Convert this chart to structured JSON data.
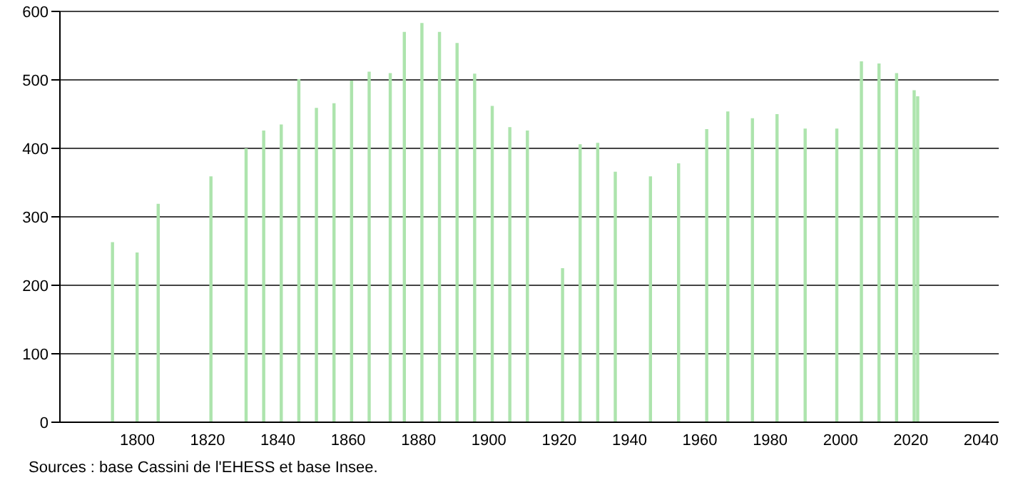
{
  "chart_data": {
    "type": "bar",
    "color": "#ade4ad",
    "x": [
      1793,
      1800,
      1806,
      1821,
      1831,
      1836,
      1841,
      1846,
      1851,
      1856,
      1861,
      1866,
      1872,
      1876,
      1881,
      1886,
      1891,
      1896,
      1901,
      1906,
      1911,
      1921,
      1926,
      1931,
      1936,
      1946,
      1954,
      1962,
      1968,
      1975,
      1982,
      1990,
      1999,
      2006,
      2011,
      2016,
      2021,
      2022
    ],
    "values": [
      263,
      248,
      319,
      359,
      400,
      426,
      435,
      501,
      459,
      466,
      499,
      512,
      510,
      570,
      583,
      570,
      554,
      509,
      462,
      431,
      426,
      225,
      406,
      408,
      366,
      359,
      378,
      428,
      454,
      444,
      450,
      429,
      429,
      527,
      524,
      510,
      485,
      476
    ],
    "xlim": [
      1778,
      2045
    ],
    "xticks": [
      1800,
      1820,
      1840,
      1860,
      1880,
      1900,
      1920,
      1940,
      1960,
      1980,
      2000,
      2020,
      2040
    ],
    "ylim": [
      0,
      600
    ],
    "yticks": [
      0,
      100,
      200,
      300,
      400,
      500,
      600
    ],
    "grid": "y",
    "annotations": [
      "Sources : base Cassini de l'EHESS et base Insee."
    ]
  }
}
